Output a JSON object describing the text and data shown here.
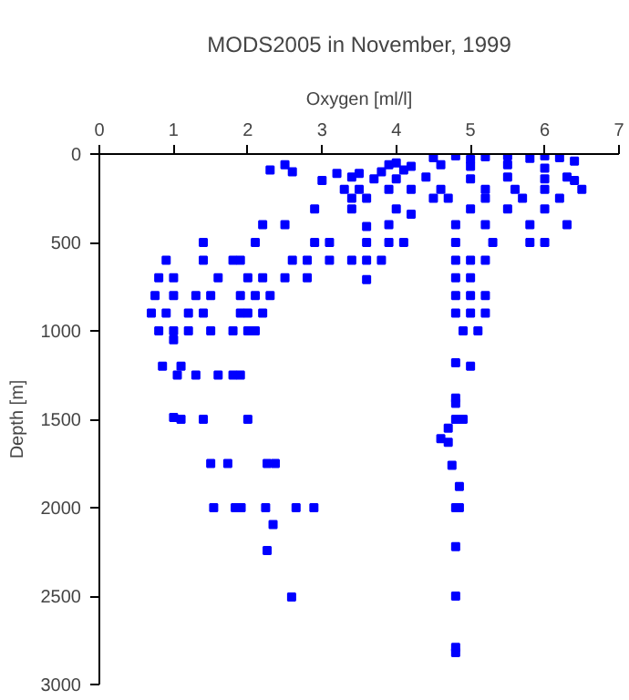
{
  "chart_data": {
    "type": "scatter",
    "title": "MODS2005 in November, 1999",
    "xlabel": "Oxygen [ml/l]",
    "ylabel": "Depth [m]",
    "xlim": [
      0,
      7
    ],
    "xticks": [
      0,
      1,
      2,
      3,
      4,
      5,
      6,
      7
    ],
    "ylim": [
      3000,
      0
    ],
    "yticks": [
      0,
      500,
      1000,
      1500,
      2000,
      2500,
      3000
    ],
    "grid": false,
    "marker": "square",
    "series": [
      {
        "color": "#0000ff",
        "x": [
          4.5,
          4.8,
          5.0,
          5.2,
          5.5,
          5.8,
          6.0,
          6.2,
          6.4,
          4.0,
          3.9,
          4.2,
          4.6,
          5.0,
          5.5,
          6.0,
          6.4,
          2.3,
          2.5,
          2.6,
          3.2,
          3.5,
          3.8,
          4.1,
          3.0,
          3.4,
          3.7,
          4.0,
          4.4,
          5.0,
          5.5,
          6.0,
          6.3,
          3.3,
          3.5,
          3.9,
          4.2,
          4.6,
          5.2,
          5.6,
          6.0,
          6.5,
          3.4,
          3.6,
          4.5,
          4.7,
          5.2,
          5.7,
          6.2,
          2.9,
          3.4,
          4.0,
          5.0,
          5.5,
          6.0,
          4.2,
          2.2,
          2.5,
          3.6,
          3.9,
          4.8,
          5.2,
          5.8,
          6.3,
          1.4,
          2.1,
          2.9,
          3.1,
          3.6,
          3.9,
          4.1,
          4.8,
          5.3,
          5.8,
          6.0,
          0.9,
          1.4,
          1.8,
          1.9,
          2.6,
          2.8,
          3.1,
          3.4,
          3.6,
          3.8,
          4.8,
          5.0,
          5.2,
          0.8,
          1.0,
          1.6,
          2.0,
          2.2,
          2.5,
          2.8,
          4.8,
          5.0,
          3.6,
          0.75,
          1.0,
          1.3,
          1.5,
          1.9,
          2.1,
          2.3,
          4.8,
          5.0,
          5.2,
          0.7,
          0.9,
          1.2,
          1.4,
          1.9,
          2.0,
          2.2,
          4.8,
          5.0,
          5.2,
          0.8,
          1.0,
          1.2,
          1.5,
          1.8,
          2.0,
          2.1,
          4.9,
          5.1,
          1.0,
          0.85,
          1.1,
          4.8,
          5.0,
          1.05,
          1.3,
          1.6,
          1.8,
          1.9,
          4.8,
          4.8,
          1.0,
          1.1,
          1.4,
          2.0,
          4.8,
          4.9,
          4.7,
          4.6,
          4.7,
          1.5,
          1.73,
          2.26,
          2.37,
          4.75,
          1.54,
          1.83,
          1.91,
          2.24,
          2.65,
          2.89,
          4.8,
          4.85,
          2.34,
          2.26,
          4.8,
          2.59,
          4.8,
          4.8,
          4.8,
          4.85
        ],
        "values": [
          20,
          10,
          30,
          15,
          10,
          25,
          10,
          20,
          40,
          50,
          60,
          70,
          60,
          70,
          60,
          80,
          150,
          90,
          60,
          100,
          110,
          110,
          100,
          90,
          150,
          130,
          140,
          140,
          130,
          140,
          130,
          140,
          130,
          200,
          200,
          200,
          200,
          200,
          200,
          200,
          200,
          200,
          250,
          250,
          250,
          250,
          250,
          250,
          250,
          310,
          310,
          310,
          310,
          310,
          310,
          340,
          400,
          400,
          410,
          400,
          400,
          400,
          400,
          400,
          500,
          500,
          500,
          500,
          500,
          500,
          500,
          500,
          500,
          500,
          500,
          600,
          600,
          600,
          600,
          600,
          600,
          600,
          600,
          600,
          600,
          600,
          600,
          600,
          700,
          700,
          700,
          700,
          700,
          700,
          700,
          700,
          700,
          710,
          800,
          800,
          800,
          800,
          800,
          800,
          800,
          800,
          800,
          800,
          900,
          900,
          900,
          900,
          900,
          900,
          900,
          900,
          900,
          900,
          1000,
          1000,
          1000,
          1000,
          1000,
          1000,
          1000,
          1000,
          1000,
          1050,
          1200,
          1200,
          1180,
          1200,
          1250,
          1250,
          1250,
          1250,
          1250,
          1380,
          1410,
          1490,
          1500,
          1500,
          1500,
          1500,
          1500,
          1550,
          1610,
          1630,
          1750,
          1750,
          1750,
          1750,
          1760,
          2000,
          2000,
          2000,
          2000,
          2000,
          2000,
          2000,
          2000,
          2095,
          2242,
          2220,
          2505,
          2500,
          2790,
          2820,
          1880
        ]
      }
    ]
  }
}
